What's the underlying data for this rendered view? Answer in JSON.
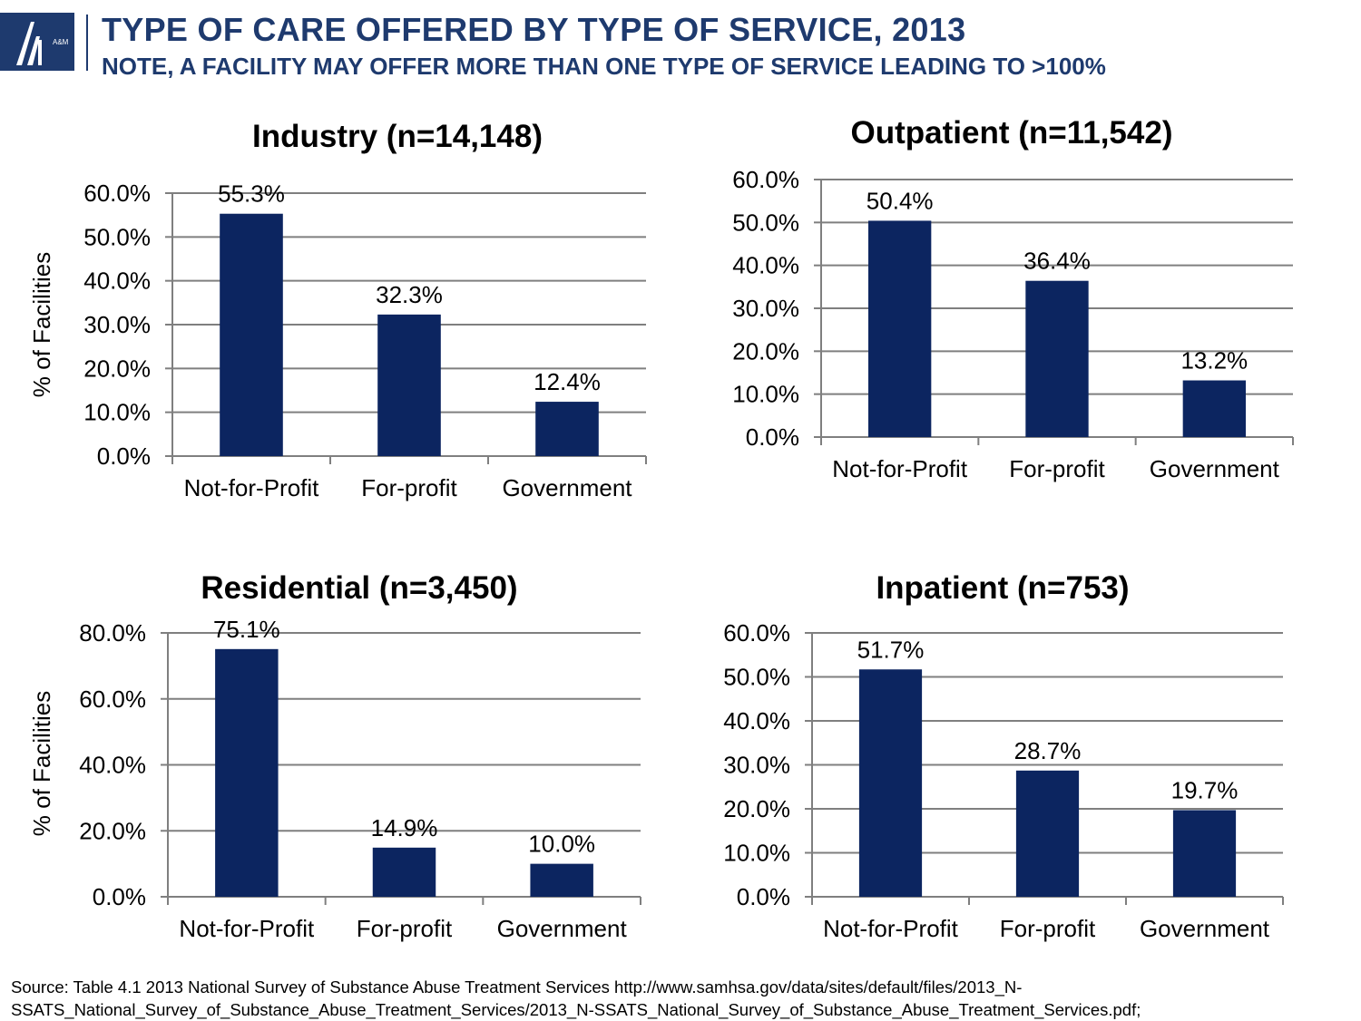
{
  "header": {
    "title": "TYPE OF CARE OFFERED BY TYPE OF SERVICE, 2013",
    "subtitle": "NOTE, A FACILITY MAY OFFER MORE THAN ONE TYPE OF SERVICE LEADING TO >100%",
    "logo_text": "A&M"
  },
  "colors": {
    "bar": "#0c2560",
    "grid": "#7f7f7f",
    "title_blue": "#1e3a6e"
  },
  "chart_data": [
    {
      "type": "bar",
      "title": "Industry (n=14,148)",
      "ylabel": "% of Facilities",
      "categories": [
        "Not-for-Profit",
        "For-profit",
        "Government"
      ],
      "values": [
        55.3,
        32.3,
        12.4
      ],
      "data_labels": [
        "55.3%",
        "32.3%",
        "12.4%"
      ],
      "ylim": [
        0,
        60
      ],
      "yticks": [
        "0.0%",
        "10.0%",
        "20.0%",
        "30.0%",
        "40.0%",
        "50.0%",
        "60.0%"
      ],
      "grid": true
    },
    {
      "type": "bar",
      "title": "Outpatient (n=11,542)",
      "ylabel": "",
      "categories": [
        "Not-for-Profit",
        "For-profit",
        "Government"
      ],
      "values": [
        50.4,
        36.4,
        13.2
      ],
      "data_labels": [
        "50.4%",
        "36.4%",
        "13.2%"
      ],
      "ylim": [
        0,
        60
      ],
      "yticks": [
        "0.0%",
        "10.0%",
        "20.0%",
        "30.0%",
        "40.0%",
        "50.0%",
        "60.0%"
      ],
      "grid": true
    },
    {
      "type": "bar",
      "title": "Residential (n=3,450)",
      "ylabel": "% of Facilities",
      "categories": [
        "Not-for-Profit",
        "For-profit",
        "Government"
      ],
      "values": [
        75.1,
        14.9,
        10.0
      ],
      "data_labels": [
        "75.1%",
        "14.9%",
        "10.0%"
      ],
      "ylim": [
        0,
        80
      ],
      "yticks": [
        "0.0%",
        "20.0%",
        "40.0%",
        "60.0%",
        "80.0%"
      ],
      "grid": true
    },
    {
      "type": "bar",
      "title": "Inpatient (n=753)",
      "ylabel": "",
      "categories": [
        "Not-for-Profit",
        "For-profit",
        "Government"
      ],
      "values": [
        51.7,
        28.7,
        19.7
      ],
      "data_labels": [
        "51.7%",
        "28.7%",
        "19.7%"
      ],
      "ylim": [
        0,
        60
      ],
      "yticks": [
        "0.0%",
        "10.0%",
        "20.0%",
        "30.0%",
        "40.0%",
        "50.0%",
        "60.0%"
      ],
      "grid": true
    }
  ],
  "footer": {
    "source": "Source: Table 4.1 2013 National Survey of Substance Abuse Treatment Services http://www.samhsa.gov/data/sites/default/files/2013_N-SSATS_National_Survey_of_Substance_Abuse_Treatment_Services/2013_N-SSATS_National_Survey_of_Substance_Abuse_Treatment_Services.pdf;"
  }
}
